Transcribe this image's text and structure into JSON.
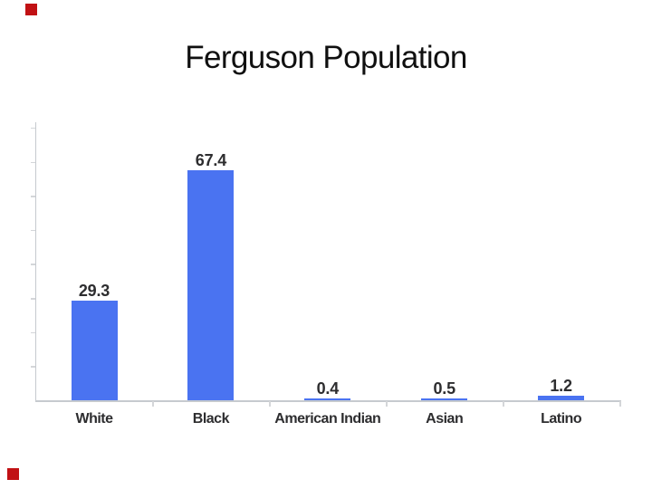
{
  "slide": {
    "title": "Ferguson Population"
  },
  "corner_markers": {
    "color": "#c11114",
    "description": "small red squares at top-left and bottom-left of slide"
  },
  "chart_data": {
    "type": "bar",
    "title": "",
    "xlabel": "",
    "ylabel": "",
    "categories": [
      "White",
      "Black",
      "American Indian",
      "Asian",
      "Latino"
    ],
    "values": [
      29.3,
      67.4,
      0.4,
      0.5,
      1.2
    ],
    "data_labels": [
      "29.3",
      "67.4",
      "0.4",
      "0.5",
      "1.2"
    ],
    "ylim": [
      0,
      80
    ],
    "y_tick_step": 10,
    "y_tick_labels_visible": false,
    "grid": false,
    "legend": false,
    "bar_color": "#4a73f1",
    "axis_color": "#c6cacf",
    "tick_color": "#d4d6d9",
    "value_label_color": "#2d2d2f",
    "category_label_color": "#2d2d2f"
  }
}
